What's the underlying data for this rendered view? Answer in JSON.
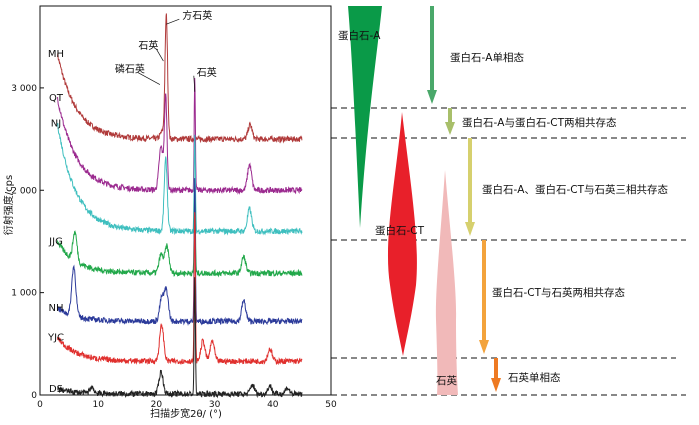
{
  "chart_data": [
    {
      "type": "line",
      "xlabel": "扫描步宽2θ/ (°)",
      "ylabel": "衍射强度/cps",
      "xlim": [
        0,
        50
      ],
      "ylim": [
        0,
        3800
      ],
      "x_ticks": [
        "0",
        "10",
        "20",
        "30",
        "40",
        "50"
      ],
      "y_ticks": [
        "0",
        "1 000",
        "2 000",
        "3 000"
      ],
      "series": [
        {
          "name": "MH",
          "baseline": 2500,
          "start": 3330,
          "peaks": [
            [
              21.0,
              70
            ],
            [
              21.7,
              1200,
              0.22
            ],
            [
              36.1,
              140
            ]
          ]
        },
        {
          "name": "QT",
          "baseline": 2000,
          "start": 2900,
          "peaks": [
            [
              20.8,
              420
            ],
            [
              21.6,
              900,
              0.22
            ],
            [
              36.0,
              250
            ],
            [
              26.6,
              1100,
              0.1
            ]
          ]
        },
        {
          "name": "NJ",
          "baseline": 1600,
          "start": 2650,
          "peaks": [
            [
              21.6,
              700,
              0.26
            ],
            [
              26.6,
              950,
              0.1
            ],
            [
              36.0,
              220
            ]
          ]
        },
        {
          "name": "JJG",
          "baseline": 1190,
          "start": 1500,
          "peaks": [
            [
              6.0,
              280
            ],
            [
              20.8,
              180
            ],
            [
              21.8,
              260
            ],
            [
              26.6,
              850,
              0.1
            ],
            [
              35.0,
              160
            ]
          ]
        },
        {
          "name": "NH",
          "baseline": 720,
          "start": 850,
          "peaks": [
            [
              5.8,
              480
            ],
            [
              20.9,
              220
            ],
            [
              21.7,
              300
            ],
            [
              26.6,
              1400,
              0.1
            ],
            [
              35.0,
              200
            ]
          ]
        },
        {
          "name": "YJC",
          "baseline": 330,
          "start": 560,
          "peaks": [
            [
              20.9,
              350
            ],
            [
              26.6,
              1500,
              0.1
            ],
            [
              28.0,
              200
            ],
            [
              29.6,
              200
            ],
            [
              39.5,
              120
            ]
          ]
        },
        {
          "name": "DS",
          "baseline": 10,
          "start": 60,
          "peaks": [
            [
              8.9,
              60
            ],
            [
              20.8,
              220
            ],
            [
              26.6,
              1150,
              0.1
            ],
            [
              36.5,
              90
            ],
            [
              39.5,
              80
            ],
            [
              42.5,
              60
            ],
            [
              45.8,
              70
            ]
          ]
        }
      ],
      "series_colors": [
        "#b03a3a",
        "#9b2a8f",
        "#3fbfbf",
        "#22a84a",
        "#2b3a9a",
        "#e0302e",
        "#222222"
      ],
      "annotations": [
        {
          "text": "方石英",
          "x": 21.7,
          "y": 3720
        },
        {
          "text": "石英",
          "x": 21.2,
          "y": 3360
        },
        {
          "text": "磷石英",
          "x": 20.6,
          "y": 3130
        },
        {
          "text": "石英",
          "x": 26.6,
          "y": 3060
        }
      ]
    },
    {
      "type": "diagram",
      "phases": [
        {
          "label": "蛋白石-A",
          "color": "#0a9a48"
        },
        {
          "label": "蛋白石-CT",
          "color": "#e8202a"
        },
        {
          "label": "石英",
          "color": "#f1b9b9"
        }
      ],
      "stages": [
        {
          "label": "蛋白石-A单相态",
          "color": "#4aa86a"
        },
        {
          "label": "蛋白石-A与蛋白石-CT两相共存态",
          "color": "#a8bf6a"
        },
        {
          "label": "蛋白石-A、蛋白石-CT与石英三相共存态",
          "color": "#d6d06e"
        },
        {
          "label": "蛋白石-CT与石英两相共存态",
          "color": "#f3a33c"
        },
        {
          "label": "石英单相态",
          "color": "#ee7a22"
        }
      ]
    }
  ]
}
